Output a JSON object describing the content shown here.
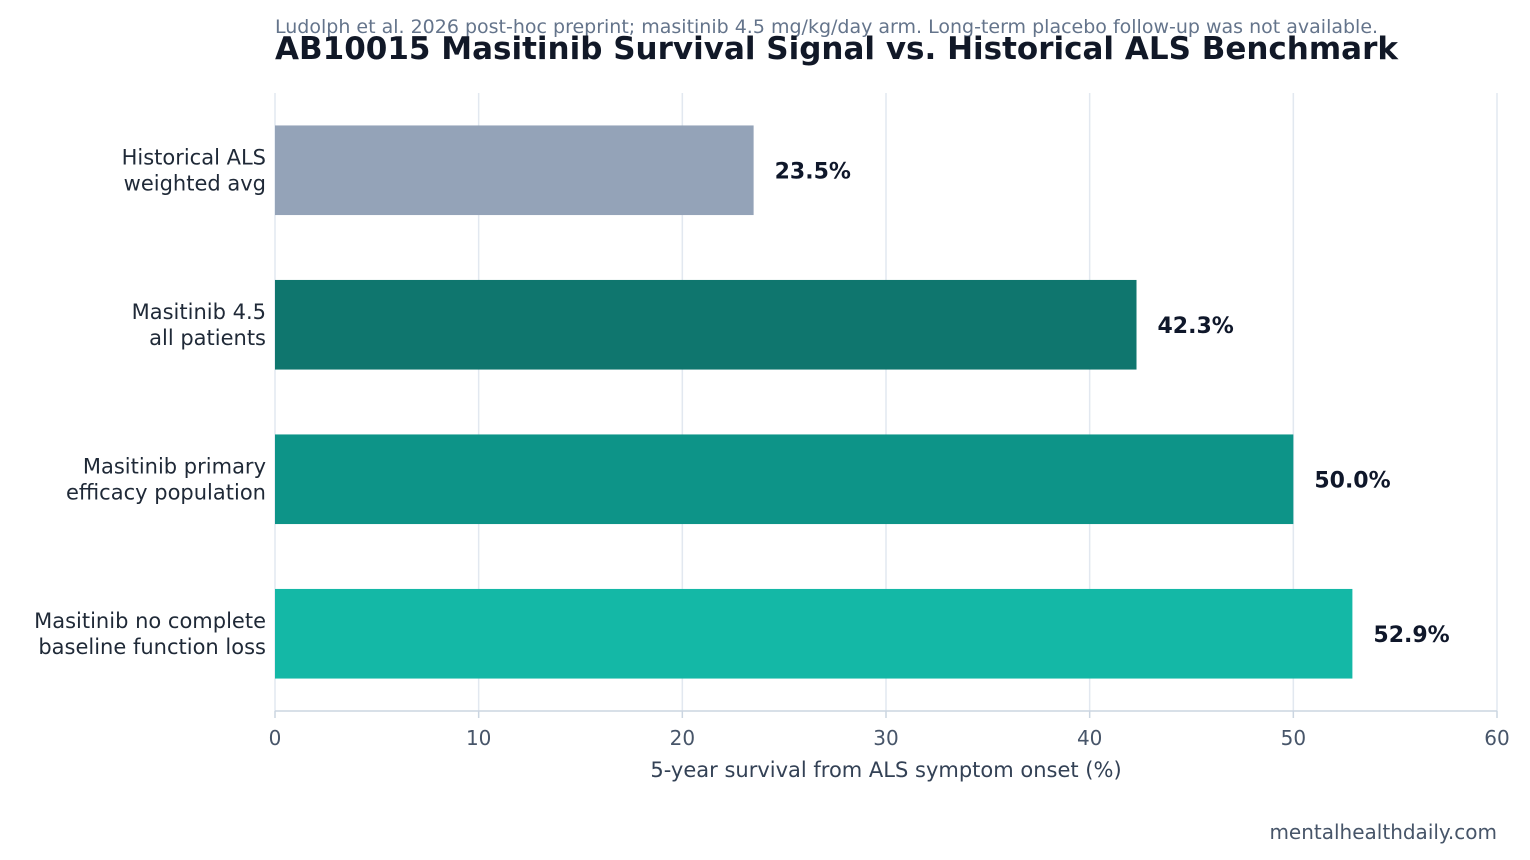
{
  "chart_data": {
    "type": "bar",
    "orientation": "horizontal",
    "title": "AB10015 Masitinib Survival Signal vs. Historical ALS Benchmark",
    "subtitle": "Ludolph et al. 2026 post-hoc preprint; masitinib 4.5 mg/kg/day arm. Long-term placebo follow-up was not available.",
    "categories": [
      [
        "Historical ALS",
        "weighted avg"
      ],
      [
        "Masitinib 4.5",
        "all patients"
      ],
      [
        "Masitinib primary",
        "efficacy population"
      ],
      [
        "Masitinib no complete",
        "baseline function loss"
      ]
    ],
    "values": [
      23.5,
      42.3,
      50.0,
      52.9
    ],
    "value_labels": [
      "23.5%",
      "42.3%",
      "50.0%",
      "52.9%"
    ],
    "colors": [
      "#94a3b8",
      "#0f766e",
      "#0d9488",
      "#14b8a6"
    ],
    "xlabel": "5-year survival from ALS symptom onset (%)",
    "ylabel": "",
    "xlim": [
      0,
      60
    ],
    "xticks": [
      0,
      10,
      20,
      30,
      40,
      50,
      60
    ],
    "grid": "vertical",
    "legend": "none"
  },
  "footer": {
    "source": "mentalhealthdaily.com"
  },
  "colors": {
    "grid": "#e2e8f0",
    "axis": "#cbd5e1"
  }
}
